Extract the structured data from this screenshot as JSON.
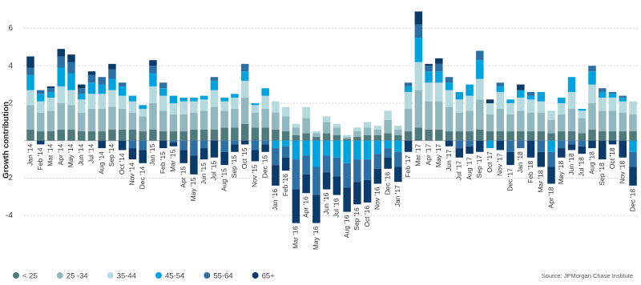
{
  "chart_data": {
    "type": "bar",
    "stacked": true,
    "y_label": "Growth contribution",
    "source": "Source: JPMorgan Chase Institute",
    "categories": [
      "Jan '14",
      "Feb '14",
      "Mar '14",
      "Apr '14",
      "May '14",
      "Jun '14",
      "Jul '14",
      "Aug '14",
      "Sep '14",
      "Oct '14",
      "Nov '14",
      "Dec '14",
      "Jan '15",
      "Feb '15",
      "Mar '15",
      "Apr '15",
      "May '15",
      "Jun '15",
      "Jul '15",
      "Aug '15",
      "Sep '15",
      "Oct '15",
      "Nov '15",
      "Dec '15",
      "Jan '16",
      "Feb '16",
      "Mar '16",
      "Apr '16",
      "May '16",
      "Jun '16",
      "Jul '16",
      "Aug '16",
      "Sep '16",
      "Oct '16",
      "Nov '16",
      "Dec '16",
      "Jan '17",
      "Feb '17",
      "Mar '17",
      "Apr '17",
      "May '17",
      "Jun '17",
      "Jul '17",
      "Aug '17",
      "Sep '17",
      "Oct '17",
      "Nov '17",
      "Dec '17",
      "Jan '18",
      "Feb '18",
      "Mar '18",
      "Apr '18",
      "May '18",
      "Jun '18",
      "Jul '18",
      "Aug '18",
      "Sep '18",
      "Oct '18",
      "Nov '18",
      "Dec '18"
    ],
    "series": [
      {
        "name": "< 25",
        "color": "#4f7b7c",
        "values": [
          0.6,
          0.5,
          0.5,
          0.6,
          0.6,
          0.5,
          0.5,
          0.5,
          0.6,
          0.6,
          0.6,
          0.5,
          0.6,
          0.5,
          0.5,
          0.5,
          0.6,
          0.6,
          0.6,
          0.7,
          0.7,
          0.9,
          0.7,
          0.7,
          0.6,
          0.5,
          0.3,
          0.4,
          0.2,
          0.4,
          0.3,
          0.1,
          0.2,
          0.3,
          0.3,
          0.4,
          0.3,
          0.5,
          0.7,
          0.6,
          0.6,
          0.5,
          0.5,
          0.5,
          0.6,
          0.5,
          0.5,
          0.5,
          0.5,
          0.5,
          0.5,
          0.4,
          0.5,
          0.5,
          0.4,
          0.6,
          0.5,
          0.5,
          0.5,
          0.5
        ]
      },
      {
        "name": "25 -34",
        "color": "#91b7bf",
        "values": [
          1.3,
          1.0,
          1.1,
          1.4,
          1.3,
          1.0,
          1.2,
          1.2,
          1.2,
          1.1,
          0.9,
          0.8,
          1.4,
          1.1,
          0.9,
          0.9,
          0.9,
          1.0,
          1.2,
          0.9,
          1.0,
          1.4,
          0.8,
          1.0,
          0.9,
          0.8,
          0.4,
          0.8,
          0.2,
          0.6,
          0.4,
          0.1,
          0.3,
          0.4,
          0.3,
          0.7,
          0.3,
          1.2,
          2.0,
          1.5,
          1.5,
          1.3,
          1.0,
          1.1,
          1.6,
          0.9,
          1.2,
          0.9,
          1.1,
          1.0,
          1.0,
          0.7,
          0.9,
          1.2,
          0.8,
          1.4,
          1.1,
          1.1,
          1.0,
          0.9
        ]
      },
      {
        "name": "35-44",
        "color": "#b5dadd",
        "values": [
          0.8,
          0.6,
          0.7,
          0.9,
          0.8,
          0.7,
          0.8,
          0.8,
          0.9,
          0.7,
          0.6,
          0.4,
          0.9,
          0.8,
          0.6,
          0.7,
          0.6,
          0.6,
          0.9,
          0.5,
          0.6,
          0.9,
          0.4,
          0.7,
          0.6,
          0.5,
          0.2,
          0.6,
          0.1,
          0.3,
          0.2,
          0.1,
          0.2,
          0.3,
          0.2,
          0.5,
          0.2,
          0.9,
          1.5,
          1.0,
          1.0,
          0.9,
          0.7,
          0.8,
          1.1,
          0.6,
          0.9,
          0.6,
          0.7,
          0.7,
          0.6,
          0.5,
          0.6,
          0.9,
          0.4,
          1.0,
          0.7,
          0.7,
          0.6,
          0.7
        ]
      },
      {
        "name": "45-54",
        "color": "#00a3de",
        "values": [
          0.8,
          0.4,
          0.3,
          1.0,
          0.9,
          0.3,
          0.6,
          0.5,
          0.6,
          0.5,
          0.3,
          0.2,
          0.7,
          0.4,
          0.4,
          0.2,
          0.2,
          0.2,
          0.5,
          0.2,
          0.2,
          0.5,
          0.1,
          0.4,
          -0.4,
          -0.3,
          -1.0,
          -0.8,
          -1.4,
          -0.8,
          -0.9,
          -1.2,
          -1.0,
          -1.0,
          -0.7,
          -0.4,
          -0.6,
          0.3,
          1.3,
          0.6,
          0.6,
          0.4,
          0.4,
          0.6,
          1.0,
          -0.4,
          0.3,
          0.2,
          0.4,
          0.2,
          0.5,
          -0.6,
          0.3,
          0.8,
          0.1,
          0.7,
          0.3,
          0.2,
          0.2,
          -0.6
        ]
      },
      {
        "name": "55-64",
        "color": "#2d70a6",
        "values": [
          0.4,
          0.2,
          0.2,
          0.6,
          0.6,
          0.3,
          0.4,
          0.4,
          0.5,
          0.2,
          -0.4,
          -0.5,
          0.4,
          0.3,
          -0.1,
          -0.5,
          -0.8,
          -0.4,
          0.2,
          -0.6,
          -0.2,
          0.4,
          -0.5,
          -0.2,
          -0.9,
          -0.6,
          -1.6,
          -1.0,
          -1.5,
          -0.9,
          -1.0,
          -1.3,
          -1.2,
          -1.1,
          -0.8,
          -0.5,
          -0.8,
          0.2,
          0.7,
          0.3,
          0.4,
          0.3,
          -0.4,
          -0.3,
          0.5,
          0.0,
          0.2,
          -0.6,
          -0.4,
          0.2,
          -0.6,
          -0.8,
          -0.4,
          -0.2,
          -0.3,
          0.3,
          0.2,
          0.1,
          0.1,
          -0.8
        ]
      },
      {
        "name": "65+",
        "color": "#0b3b6a",
        "values": [
          0.6,
          -0.2,
          0.1,
          0.4,
          0.4,
          0.2,
          0.2,
          -0.4,
          0.3,
          -0.5,
          -0.6,
          -0.7,
          0.3,
          -0.4,
          -0.2,
          -0.7,
          -1.0,
          -0.6,
          -0.9,
          -0.7,
          -0.4,
          -0.2,
          -0.6,
          -0.4,
          -1.1,
          -0.7,
          -1.8,
          -1.0,
          -1.5,
          -0.9,
          -1.0,
          -1.3,
          -1.2,
          -1.2,
          -0.8,
          -0.6,
          -0.8,
          -0.6,
          0.7,
          0.1,
          0.3,
          -0.3,
          -0.5,
          -0.4,
          -0.6,
          0.2,
          -0.5,
          -0.7,
          0.3,
          -0.9,
          -0.8,
          -0.9,
          -0.5,
          -0.3,
          -0.4,
          -0.4,
          -1.0,
          -0.2,
          -0.9,
          -1.0
        ]
      }
    ],
    "ylim": [
      -4.8,
      7
    ],
    "yticks": [
      -4,
      -2,
      2,
      4,
      6
    ],
    "grid": true
  }
}
